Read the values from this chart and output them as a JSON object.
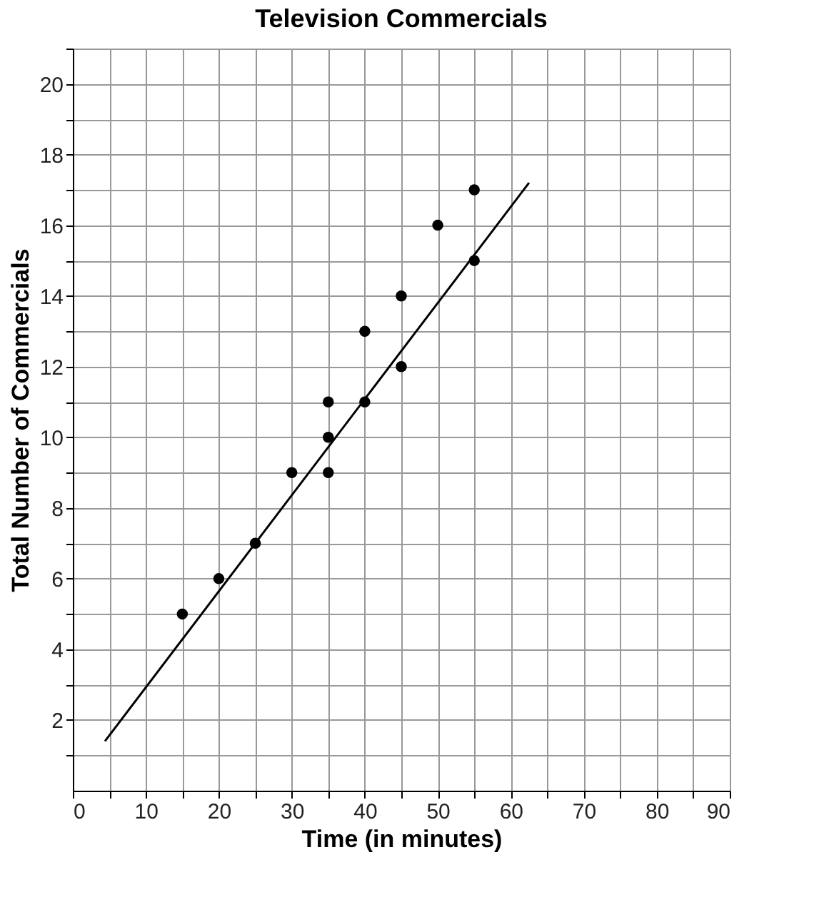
{
  "chart_data": {
    "type": "scatter",
    "title": "Television Commercials",
    "xlabel": "Time (in minutes)",
    "ylabel": "Total Number of Commercials",
    "series": [
      {
        "color": "#000000",
        "marker": "circle",
        "x": [
          15,
          20,
          25,
          30,
          35,
          35,
          35,
          40,
          40,
          45,
          45,
          50,
          55,
          55
        ],
        "values": [
          5,
          6,
          7,
          9,
          11,
          10,
          9,
          13,
          11,
          14,
          12,
          16,
          17,
          15
        ]
      },
      {
        "type": "line",
        "color": "#000000",
        "marker": "none",
        "line_style": "solid",
        "x": [
          4.4,
          62.5
        ],
        "values": [
          1.4,
          17.2
        ]
      }
    ],
    "xlim": [
      0,
      90
    ],
    "ylim": [
      0,
      21
    ],
    "xticks": [
      0,
      {
        "value": 5,
        "label": null
      },
      10,
      {
        "value": 15,
        "label": null
      },
      20,
      {
        "value": 25,
        "label": null
      },
      30,
      {
        "value": 35,
        "label": null
      },
      40,
      {
        "value": 45,
        "label": null
      },
      50,
      {
        "value": 55,
        "label": null
      },
      60,
      {
        "value": 65,
        "label": null
      },
      70,
      {
        "value": 75,
        "label": null
      },
      80,
      {
        "value": 85,
        "label": null
      },
      90
    ],
    "yticks": [
      {
        "value": 1,
        "label": null
      },
      2,
      {
        "value": 3,
        "label": null
      },
      4,
      {
        "value": 5,
        "label": null
      },
      6,
      {
        "value": 7,
        "label": null
      },
      8,
      {
        "value": 9,
        "label": null
      },
      10,
      {
        "value": 11,
        "label": null
      },
      12,
      {
        "value": 13,
        "label": null
      },
      14,
      {
        "value": 15,
        "label": null
      },
      16,
      {
        "value": 17,
        "label": null
      },
      18,
      {
        "value": 19,
        "label": null
      },
      20,
      {
        "value": 21,
        "label": null
      }
    ],
    "grid": true
  }
}
